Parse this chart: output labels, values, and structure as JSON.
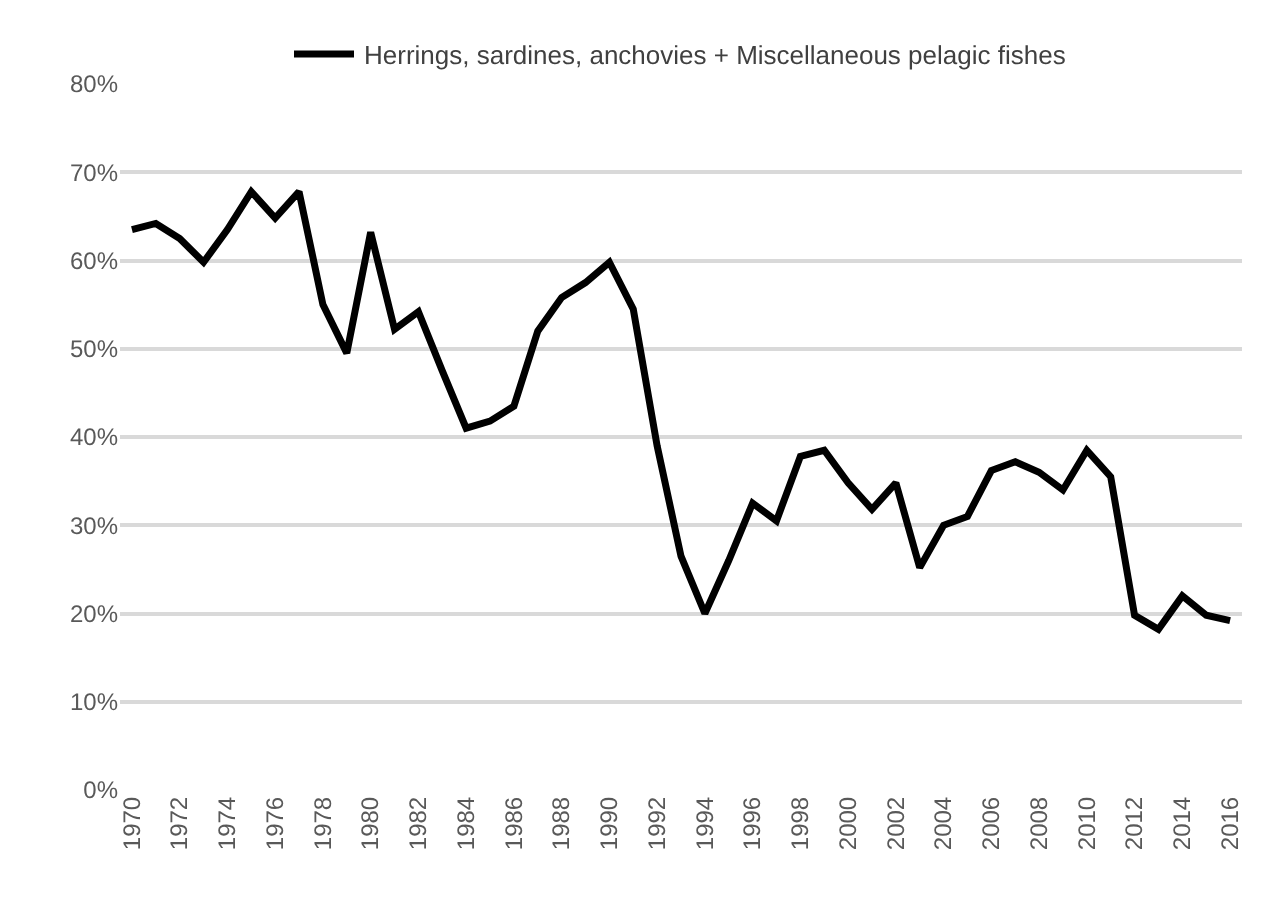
{
  "chart_data": {
    "type": "line",
    "x": [
      1970,
      1971,
      1972,
      1973,
      1974,
      1975,
      1976,
      1977,
      1978,
      1979,
      1980,
      1981,
      1982,
      1983,
      1984,
      1985,
      1986,
      1987,
      1988,
      1989,
      1990,
      1991,
      1992,
      1993,
      1994,
      1995,
      1996,
      1997,
      1998,
      1999,
      2000,
      2001,
      2002,
      2003,
      2004,
      2005,
      2006,
      2007,
      2008,
      2009,
      2010,
      2011,
      2012,
      2013,
      2014,
      2015,
      2016
    ],
    "series": [
      {
        "name": "Herrings, sardines, anchovies + Miscellaneous pelagic fishes",
        "color": "#000000",
        "values": [
          63.5,
          64.2,
          62.5,
          59.8,
          63.5,
          67.8,
          64.8,
          67.8,
          55,
          49.5,
          63.2,
          52.2,
          54.2,
          47.5,
          41,
          41.8,
          43.5,
          52,
          55.8,
          57.5,
          59.8,
          54.5,
          39,
          26.5,
          20,
          26,
          32.5,
          30.5,
          37.8,
          38.5,
          34.8,
          31.8,
          34.8,
          25.2,
          30,
          31,
          36.2,
          37.2,
          36,
          34,
          38.5,
          35.5,
          19.8,
          18.2,
          22,
          19.8,
          19.2
        ]
      }
    ],
    "xlim": [
      1969.5,
      2016.5
    ],
    "xticks": [
      1970,
      1972,
      1974,
      1976,
      1978,
      1980,
      1982,
      1984,
      1986,
      1988,
      1990,
      1992,
      1994,
      1996,
      1998,
      2000,
      2002,
      2004,
      2006,
      2008,
      2010,
      2012,
      2014,
      2016
    ],
    "ylim": [
      0,
      80
    ],
    "yticks": [
      {
        "value": 0,
        "label": "0%"
      },
      {
        "value": 10,
        "label": "10%"
      },
      {
        "value": 20,
        "label": "20%"
      },
      {
        "value": 30,
        "label": "30%"
      },
      {
        "value": 40,
        "label": "40%"
      },
      {
        "value": 50,
        "label": "50%"
      },
      {
        "value": 60,
        "label": "60%"
      },
      {
        "value": 70,
        "label": "70%"
      },
      {
        "value": 80,
        "label": "80%"
      }
    ],
    "grid": "y",
    "legend": "top",
    "marker": "none",
    "line_style": "solid"
  }
}
